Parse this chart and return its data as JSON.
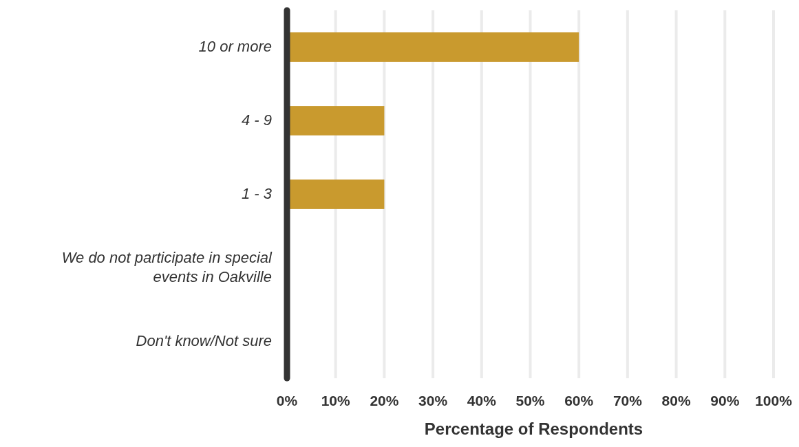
{
  "chart_data": {
    "type": "bar",
    "orientation": "horizontal",
    "categories": [
      "10 or more",
      "4 - 9",
      "1 - 3",
      "We do not participate in special events in Oakville",
      "Don't know/Not sure"
    ],
    "values": [
      60,
      20,
      20,
      0,
      0
    ],
    "color": "#c99a2e",
    "xlim": [
      0,
      100
    ],
    "xticks": [
      {
        "value": 0,
        "label": "0%"
      },
      {
        "value": 10,
        "label": "10%"
      },
      {
        "value": 20,
        "label": "20%"
      },
      {
        "value": 30,
        "label": "30%"
      },
      {
        "value": 40,
        "label": "40%"
      },
      {
        "value": 50,
        "label": "50%"
      },
      {
        "value": 60,
        "label": "60%"
      },
      {
        "value": 70,
        "label": "70%"
      },
      {
        "value": 80,
        "label": "80%"
      },
      {
        "value": 90,
        "label": "90%"
      },
      {
        "value": 100,
        "label": "100%"
      }
    ],
    "xlabel": "Percentage of Respondents",
    "grid": "x"
  }
}
